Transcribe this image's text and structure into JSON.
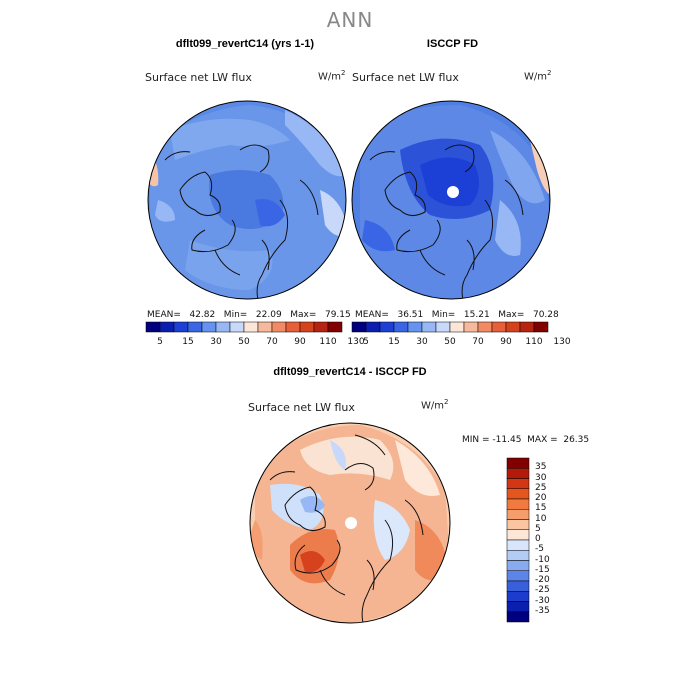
{
  "title": "ANN",
  "panels": [
    {
      "title": "dflt099_revertC14 (yrs 1-1)",
      "field": "Surface net LW flux",
      "units_base": "W/m",
      "units_exp": "2",
      "stats": "MEAN=   42.82   Min=   22.09   Max=   79.15"
    },
    {
      "title": "ISCCP FD",
      "field": "Surface net LW flux",
      "units_base": "W/m",
      "units_exp": "2",
      "stats": "MEAN=   36.51   Min=   15.21   Max=   70.28"
    }
  ],
  "abs_colorbar": {
    "labels": [
      "5",
      "15",
      "30",
      "50",
      "70",
      "90",
      "110",
      "130"
    ],
    "colors": [
      "#00007f",
      "#0a1fb0",
      "#1c3fd6",
      "#3a66e6",
      "#6593ef",
      "#97b8f5",
      "#c7d8fa",
      "#fbe6d8",
      "#f7b99b",
      "#f28a63",
      "#e8603a",
      "#d6421e",
      "#b62411",
      "#820000"
    ]
  },
  "diff_panel": {
    "title": "dflt099_revertC14 - ISCCP FD",
    "field": "Surface net LW flux",
    "units_base": "W/m",
    "units_exp": "2",
    "stats": "MIN = -11.45  MAX =  26.35"
  },
  "diff_colorbar": {
    "labels": [
      "35",
      "30",
      "25",
      "20",
      "15",
      "10",
      "5",
      "0",
      "-5",
      "-10",
      "-15",
      "-20",
      "-25",
      "-30",
      "-35"
    ],
    "colors": [
      "#820000",
      "#b41a0a",
      "#d23614",
      "#e5561f",
      "#f07a40",
      "#f59e6b",
      "#f9c5a2",
      "#fde6d6",
      "#d9e5fb",
      "#b3ccf6",
      "#87aaf0",
      "#5d84e8",
      "#3a5fdc",
      "#1b3ccc",
      "#0a1fae",
      "#00007f"
    ]
  }
}
